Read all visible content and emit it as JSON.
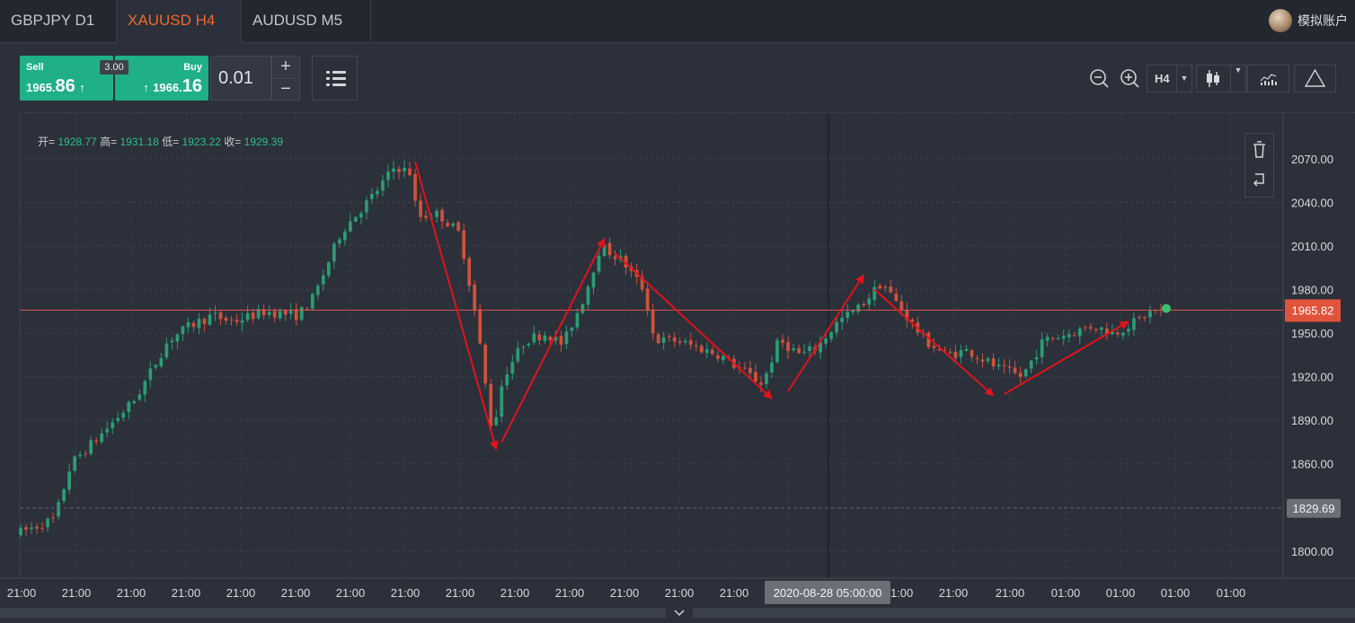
{
  "tabs": [
    {
      "label": "GBPJPY D1",
      "active": false
    },
    {
      "label": "XAUUSD H4",
      "active": true
    },
    {
      "label": "AUDUSD M5",
      "active": false
    }
  ],
  "account": {
    "name": "模拟账户"
  },
  "trade": {
    "sell": {
      "label": "Sell",
      "price_small": "1965.",
      "price_big": "86",
      "arrow": "↑"
    },
    "buy": {
      "label": "Buy",
      "price_small": "1966.",
      "price_big": "16",
      "arrow": "↑"
    },
    "spread": "3.00",
    "lot": "0.01",
    "plus": "+",
    "minus": "−"
  },
  "toolbar": {
    "timeframe": "H4",
    "icons": [
      "zoom-out-icon",
      "zoom-in-icon",
      "candlestick-icon",
      "indicator-icon",
      "draw-triangle-icon",
      "list-icon"
    ]
  },
  "ohlc": {
    "open_label": "开=",
    "open": "1928.77",
    "high_label": "高=",
    "high": "1931.18",
    "low_label": "低=",
    "low": "1923.22",
    "close_label": "收=",
    "close": "1929.39"
  },
  "colors": {
    "up": "#2a9d75",
    "down": "#d1513a",
    "price_line": "#d9534f",
    "arrow": "#e3121a",
    "accent": "#f06a2b"
  },
  "chart_data": {
    "type": "candlestick",
    "symbol": "XAUUSD",
    "timeframe": "H4",
    "y_ticks": [
      "2070.00",
      "2040.00",
      "2010.00",
      "1980.00",
      "1950.00",
      "1920.00",
      "1890.00",
      "1860.00",
      "1829.69",
      "1800.00"
    ],
    "ylim": [
      1781.37,
      2095.27
    ],
    "current_price": "1965.82",
    "cursor_price": "1829.69",
    "x_ticks": [
      "21:00",
      "21:00",
      "21:00",
      "21:00",
      "21:00",
      "21:00",
      "21:00",
      "21:00",
      "21:00",
      "21:00",
      "21:00",
      "21:00",
      "21:00",
      "21:00",
      "21:00",
      "21:00",
      "21:00",
      "21:00",
      "21:00",
      "01:00",
      "01:00",
      "01:00",
      "01:00"
    ],
    "crosshair_time": "2020-08-28 05:00:00",
    "price_path": [
      [
        0,
        1812
      ],
      [
        7,
        1822
      ],
      [
        10,
        1860
      ],
      [
        15,
        1878
      ],
      [
        22,
        1905
      ],
      [
        28,
        1945
      ],
      [
        32,
        1955
      ],
      [
        36,
        1962
      ],
      [
        40,
        1958
      ],
      [
        46,
        1965
      ],
      [
        52,
        1962
      ],
      [
        55,
        1975
      ],
      [
        60,
        2020
      ],
      [
        66,
        2045
      ],
      [
        70,
        2065
      ],
      [
        73,
        2060
      ],
      [
        74,
        2030
      ],
      [
        78,
        2032
      ],
      [
        82,
        2018
      ],
      [
        85,
        1960
      ],
      [
        88,
        1880
      ],
      [
        90,
        1920
      ],
      [
        94,
        1945
      ],
      [
        98,
        1950
      ],
      [
        101,
        1942
      ],
      [
        105,
        1975
      ],
      [
        108,
        2010
      ],
      [
        112,
        2000
      ],
      [
        116,
        1980
      ],
      [
        118,
        1945
      ],
      [
        122,
        1945
      ],
      [
        126,
        1940
      ],
      [
        130,
        1935
      ],
      [
        134,
        1925
      ],
      [
        138,
        1915
      ],
      [
        141,
        1945
      ],
      [
        145,
        1935
      ],
      [
        148,
        1940
      ],
      [
        152,
        1958
      ],
      [
        156,
        1968
      ],
      [
        160,
        1985
      ],
      [
        162,
        1975
      ],
      [
        165,
        1960
      ],
      [
        168,
        1945
      ],
      [
        172,
        1935
      ],
      [
        176,
        1938
      ],
      [
        182,
        1925
      ],
      [
        186,
        1920
      ],
      [
        190,
        1945
      ],
      [
        195,
        1950
      ],
      [
        199,
        1955
      ],
      [
        203,
        1950
      ],
      [
        207,
        1958
      ],
      [
        210,
        1965
      ]
    ],
    "annotations": [
      {
        "type": "arrow",
        "from": [
          73,
          2068
        ],
        "to": [
          88,
          1870
        ]
      },
      {
        "type": "arrow",
        "from": [
          89,
          1875
        ],
        "to": [
          108,
          2015
        ]
      },
      {
        "type": "arrow",
        "from": [
          110,
          2005
        ],
        "to": [
          139,
          1905
        ]
      },
      {
        "type": "arrow",
        "from": [
          142,
          1910
        ],
        "to": [
          156,
          1990
        ]
      },
      {
        "type": "arrow",
        "from": [
          158,
          1980
        ],
        "to": [
          180,
          1907
        ]
      },
      {
        "type": "arrow",
        "from": [
          182,
          1908
        ],
        "to": [
          205,
          1958
        ]
      }
    ]
  }
}
